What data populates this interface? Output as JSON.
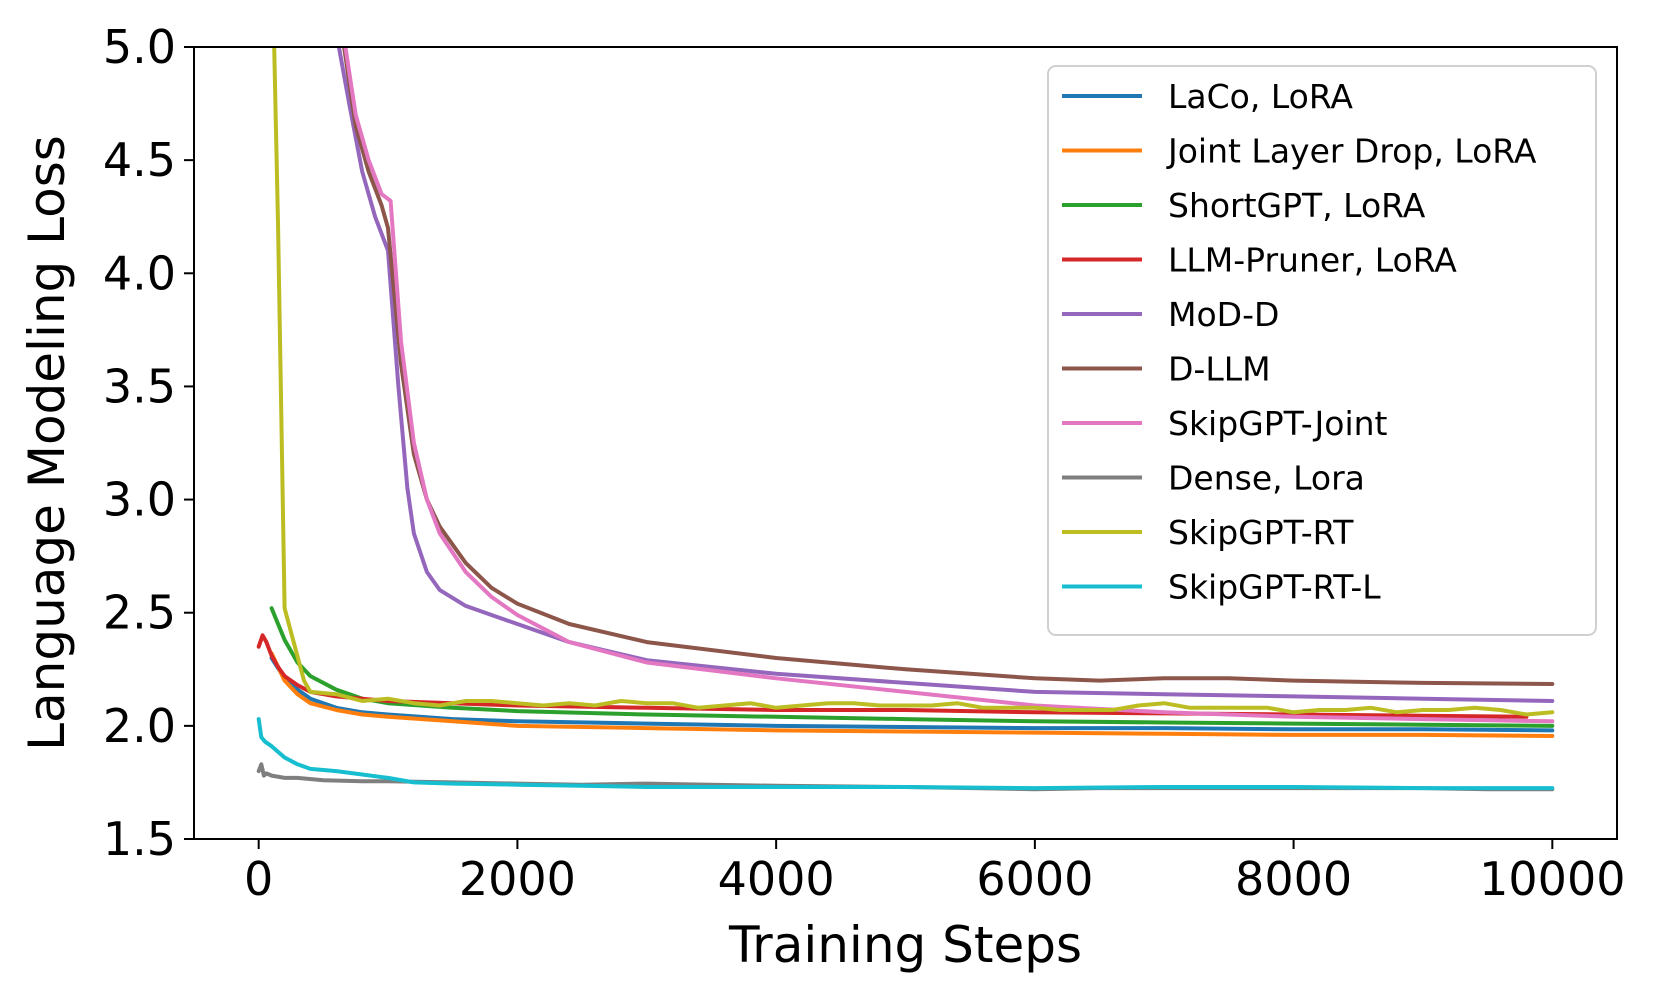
{
  "chart_data": {
    "type": "line",
    "title": "",
    "xlabel": "Training Steps",
    "ylabel": "Language Modeling Loss",
    "xlim": [
      -500,
      10500
    ],
    "ylim": [
      1.5,
      5.0
    ],
    "xticks": [
      0,
      2000,
      4000,
      6000,
      8000,
      10000
    ],
    "xtick_labels": [
      "0",
      "2000",
      "4000",
      "6000",
      "8000",
      "10000"
    ],
    "yticks": [
      1.5,
      2.0,
      2.5,
      3.0,
      3.5,
      4.0,
      4.5,
      5.0
    ],
    "ytick_labels": [
      "1.5",
      "2.0",
      "2.5",
      "3.0",
      "3.5",
      "4.0",
      "4.5",
      "5.0"
    ],
    "grid": false,
    "legend_position": "top-right",
    "series": [
      {
        "name": "LaCo, LoRA",
        "color": "#1f77b4",
        "x": [
          100,
          200,
          300,
          400,
          600,
          800,
          1000,
          1500,
          2000,
          3000,
          4000,
          5000,
          6000,
          7000,
          8000,
          9000,
          10000
        ],
        "y": [
          2.3,
          2.21,
          2.16,
          2.12,
          2.08,
          2.06,
          2.05,
          2.03,
          2.02,
          2.01,
          2.0,
          1.995,
          1.99,
          1.99,
          1.985,
          1.985,
          1.98
        ]
      },
      {
        "name": "Joint Layer Drop, LoRA",
        "color": "#ff7f0e",
        "x": [
          100,
          200,
          300,
          400,
          600,
          800,
          1000,
          1500,
          2000,
          3000,
          4000,
          5000,
          6000,
          7000,
          8000,
          9000,
          10000
        ],
        "y": [
          2.32,
          2.2,
          2.14,
          2.1,
          2.07,
          2.05,
          2.04,
          2.02,
          2.0,
          1.99,
          1.98,
          1.975,
          1.97,
          1.965,
          1.96,
          1.96,
          1.955
        ]
      },
      {
        "name": "ShortGPT, LoRA",
        "color": "#2ca02c",
        "x": [
          100,
          200,
          300,
          400,
          600,
          800,
          1000,
          1500,
          2000,
          3000,
          4000,
          5000,
          6000,
          7000,
          8000,
          9000,
          10000
        ],
        "y": [
          2.52,
          2.38,
          2.28,
          2.22,
          2.16,
          2.12,
          2.1,
          2.08,
          2.065,
          2.05,
          2.04,
          2.03,
          2.02,
          2.015,
          2.01,
          2.005,
          2.0
        ]
      },
      {
        "name": "LLM-Pruner, LoRA",
        "color": "#d62728",
        "x": [
          0,
          30,
          60,
          100,
          150,
          200,
          300,
          400,
          600,
          800,
          1000,
          1500,
          2000,
          3000,
          4000,
          5000,
          6000,
          7000,
          8000,
          9000,
          9800
        ],
        "y": [
          2.35,
          2.4,
          2.37,
          2.31,
          2.26,
          2.22,
          2.18,
          2.15,
          2.13,
          2.12,
          2.11,
          2.1,
          2.09,
          2.08,
          2.07,
          2.07,
          2.06,
          2.055,
          2.05,
          2.045,
          2.04
        ]
      },
      {
        "name": "MoD-D",
        "color": "#9467bd",
        "x": [
          620,
          700,
          800,
          900,
          1000,
          1080,
          1150,
          1200,
          1300,
          1400,
          1600,
          1800,
          2000,
          2400,
          3000,
          4000,
          5000,
          6000,
          7000,
          8000,
          9000,
          10000
        ],
        "y": [
          5.0,
          4.75,
          4.45,
          4.25,
          4.1,
          3.5,
          3.05,
          2.85,
          2.68,
          2.6,
          2.53,
          2.49,
          2.45,
          2.37,
          2.29,
          2.23,
          2.19,
          2.15,
          2.14,
          2.13,
          2.12,
          2.11
        ]
      },
      {
        "name": "D-LLM",
        "color": "#8c564b",
        "x": [
          660,
          750,
          850,
          950,
          1000,
          1100,
          1200,
          1300,
          1400,
          1600,
          1800,
          2000,
          2400,
          3000,
          4000,
          5000,
          6000,
          6500,
          7000,
          7500,
          8000,
          9000,
          10000
        ],
        "y": [
          5.0,
          4.65,
          4.45,
          4.3,
          4.2,
          3.6,
          3.2,
          3.0,
          2.88,
          2.72,
          2.61,
          2.54,
          2.45,
          2.37,
          2.3,
          2.25,
          2.21,
          2.2,
          2.21,
          2.21,
          2.2,
          2.19,
          2.185
        ]
      },
      {
        "name": "SkipGPT-Joint",
        "color": "#e377c2",
        "x": [
          670,
          750,
          850,
          950,
          1020,
          1100,
          1200,
          1300,
          1400,
          1600,
          1800,
          2000,
          2400,
          3000,
          4000,
          5000,
          6000,
          7000,
          8000,
          9000,
          10000
        ],
        "y": [
          5.0,
          4.7,
          4.5,
          4.35,
          4.32,
          3.7,
          3.25,
          3.0,
          2.85,
          2.68,
          2.57,
          2.49,
          2.37,
          2.28,
          2.21,
          2.15,
          2.09,
          2.06,
          2.04,
          2.03,
          2.02
        ]
      },
      {
        "name": "Dense, Lora",
        "color": "#7f7f7f",
        "x": [
          0,
          20,
          40,
          60,
          100,
          200,
          300,
          500,
          800,
          1000,
          1500,
          2000,
          2500,
          3000,
          3500,
          4000,
          5000,
          6000,
          6500,
          7000,
          7500,
          8000,
          9000,
          9500,
          10000
        ],
        "y": [
          1.8,
          1.83,
          1.78,
          1.79,
          1.78,
          1.77,
          1.77,
          1.76,
          1.755,
          1.755,
          1.75,
          1.745,
          1.74,
          1.745,
          1.74,
          1.735,
          1.73,
          1.72,
          1.725,
          1.725,
          1.725,
          1.725,
          1.725,
          1.72,
          1.72
        ]
      },
      {
        "name": "SkipGPT-RT",
        "color": "#bcbd22",
        "x": [
          120,
          150,
          200,
          280,
          350,
          400,
          600,
          800,
          1000,
          1200,
          1400,
          1600,
          1800,
          2000,
          2200,
          2400,
          2600,
          2800,
          3000,
          3200,
          3400,
          3600,
          3800,
          4000,
          4200,
          4400,
          4600,
          4800,
          5000,
          5200,
          5400,
          5600,
          5800,
          6000,
          6200,
          6400,
          6600,
          6800,
          7000,
          7200,
          7400,
          7600,
          7800,
          8000,
          8200,
          8400,
          8600,
          8800,
          9000,
          9200,
          9400,
          9600,
          9800,
          10000
        ],
        "y": [
          5.0,
          4.2,
          2.52,
          2.35,
          2.2,
          2.15,
          2.14,
          2.11,
          2.12,
          2.1,
          2.09,
          2.11,
          2.11,
          2.1,
          2.09,
          2.1,
          2.09,
          2.11,
          2.1,
          2.1,
          2.08,
          2.09,
          2.1,
          2.08,
          2.09,
          2.1,
          2.1,
          2.09,
          2.09,
          2.09,
          2.1,
          2.08,
          2.08,
          2.08,
          2.07,
          2.07,
          2.07,
          2.09,
          2.1,
          2.08,
          2.08,
          2.08,
          2.08,
          2.06,
          2.07,
          2.07,
          2.08,
          2.06,
          2.07,
          2.07,
          2.08,
          2.07,
          2.05,
          2.06
        ]
      },
      {
        "name": "SkipGPT-RT-L",
        "color": "#17becf",
        "x": [
          0,
          20,
          50,
          100,
          200,
          300,
          400,
          600,
          800,
          1000,
          1200,
          1500,
          2000,
          2500,
          3000,
          3500,
          4000,
          5000,
          6000,
          7000,
          8000,
          9000,
          10000
        ],
        "y": [
          2.03,
          1.95,
          1.93,
          1.91,
          1.86,
          1.83,
          1.81,
          1.8,
          1.785,
          1.77,
          1.75,
          1.745,
          1.74,
          1.735,
          1.73,
          1.73,
          1.73,
          1.73,
          1.725,
          1.73,
          1.73,
          1.725,
          1.725
        ]
      }
    ]
  }
}
